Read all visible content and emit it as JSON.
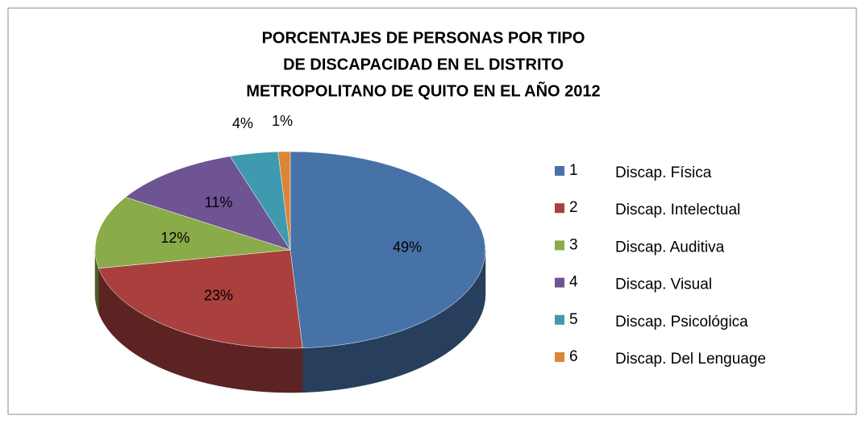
{
  "chart_data": {
    "type": "pie3d",
    "title": [
      "PORCENTAJES DE PERSONAS POR TIPO",
      "DE DISCAPACIDAD  EN EL DISTRITO",
      "METROPOLITANO DE QUITO EN EL AÑO 2012"
    ],
    "categories": [
      "1",
      "2",
      "3",
      "4",
      "5",
      "6"
    ],
    "annotations": [
      "Discap. Física",
      "Discap. Intelectual",
      "Discap. Auditiva",
      "Discap. Visual",
      "Discap. Psicológica",
      "Discap. Del Lenguage"
    ],
    "values": [
      49,
      23,
      12,
      11,
      4,
      1
    ],
    "value_labels": [
      "49%",
      "23%",
      "12%",
      "11%",
      "4%",
      "1%"
    ],
    "colors": [
      "#4672a8",
      "#a9403d",
      "#8aab49",
      "#6f5493",
      "#3f9ab0",
      "#da8537"
    ],
    "legend": "right"
  }
}
